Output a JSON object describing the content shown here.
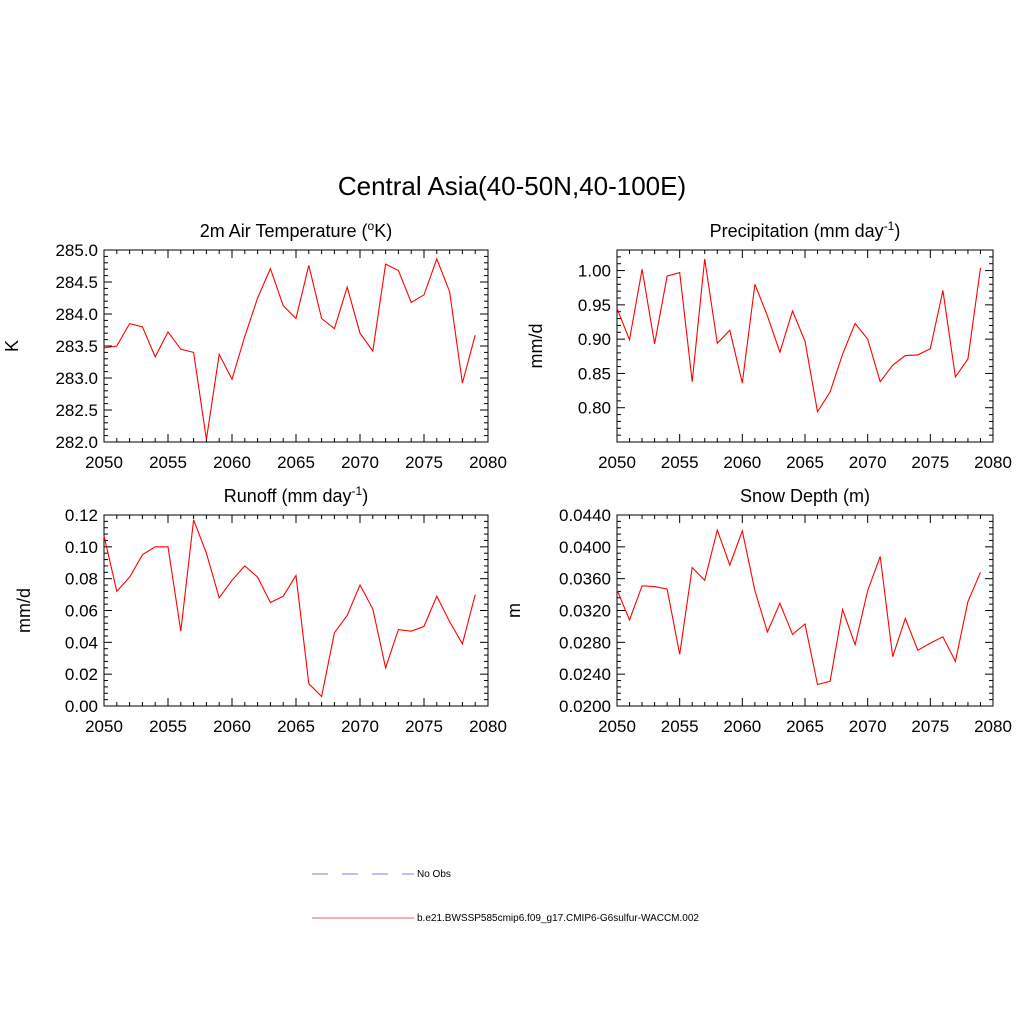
{
  "figure": {
    "title": "Central Asia(40-50N,40-100E)"
  },
  "legend": {
    "entries": [
      {
        "label": "No Obs",
        "style": "dashed",
        "color": "#9a9ae0"
      },
      {
        "label": "b.e21.BWSSP585cmip6.f09_g17.CMIP6-G6sulfur-WACCM.002",
        "style": "solid",
        "color": "#f08080"
      }
    ]
  },
  "chart_data": [
    {
      "type": "line",
      "title": "2m Air Temperature (",
      "title_sup": "o",
      "title_tail": "K)",
      "ylabel": "K",
      "xlim": [
        2050,
        2080
      ],
      "ylim": [
        282.0,
        285.0
      ],
      "xticks": [
        2050,
        2055,
        2060,
        2065,
        2070,
        2075,
        2080
      ],
      "xtick_labels": [
        "2050",
        "2055",
        "2060",
        "2065",
        "2070",
        "2075",
        "2080"
      ],
      "yticks": [
        282.0,
        282.5,
        283.0,
        283.5,
        284.0,
        284.5,
        285.0
      ],
      "ytick_labels": [
        "282.0",
        "282.5",
        "283.0",
        "283.5",
        "284.0",
        "284.5",
        "285.0"
      ],
      "series": [
        {
          "color": "#ff0000",
          "x": [
            2050,
            2051,
            2052,
            2053,
            2054,
            2055,
            2056,
            2057,
            2058,
            2059,
            2060,
            2061,
            2062,
            2063,
            2064,
            2065,
            2066,
            2067,
            2068,
            2069,
            2070,
            2071,
            2072,
            2073,
            2074,
            2075,
            2076,
            2077,
            2078,
            2079
          ],
          "y": [
            283.47,
            283.5,
            283.85,
            283.8,
            283.33,
            283.72,
            283.45,
            283.4,
            282.04,
            283.37,
            282.98,
            283.65,
            284.25,
            284.71,
            284.13,
            283.93,
            284.76,
            283.93,
            283.77,
            284.42,
            283.7,
            283.42,
            284.78,
            284.68,
            284.18,
            284.3,
            284.86,
            284.35,
            282.92,
            283.67
          ]
        }
      ]
    },
    {
      "type": "line",
      "title": "Precipitation (mm day",
      "title_sup": "-1",
      "title_tail": ")",
      "ylabel": "mm/d",
      "xlim": [
        2050,
        2080
      ],
      "ylim": [
        0.75,
        1.03
      ],
      "xticks": [
        2050,
        2055,
        2060,
        2065,
        2070,
        2075,
        2080
      ],
      "xtick_labels": [
        "2050",
        "2055",
        "2060",
        "2065",
        "2070",
        "2075",
        "2080"
      ],
      "yticks": [
        0.8,
        0.85,
        0.9,
        0.95,
        1.0
      ],
      "ytick_labels": [
        "0.80",
        "0.85",
        "0.90",
        "0.95",
        "1.00"
      ],
      "series": [
        {
          "color": "#ff0000",
          "x": [
            2050,
            2051,
            2052,
            2053,
            2054,
            2055,
            2056,
            2057,
            2058,
            2059,
            2060,
            2061,
            2062,
            2063,
            2064,
            2065,
            2066,
            2067,
            2068,
            2069,
            2070,
            2071,
            2072,
            2073,
            2074,
            2075,
            2076,
            2077,
            2078,
            2079
          ],
          "y": [
            0.945,
            0.899,
            1.002,
            0.893,
            0.992,
            0.997,
            0.838,
            1.017,
            0.894,
            0.913,
            0.836,
            0.98,
            0.934,
            0.881,
            0.941,
            0.897,
            0.794,
            0.823,
            0.878,
            0.923,
            0.9,
            0.838,
            0.862,
            0.876,
            0.877,
            0.886,
            0.971,
            0.845,
            0.871,
            1.004
          ]
        }
      ]
    },
    {
      "type": "line",
      "title": "Runoff (mm day",
      "title_sup": "-1",
      "title_tail": ")",
      "ylabel": "mm/d",
      "xlim": [
        2050,
        2080
      ],
      "ylim": [
        0.0,
        0.12
      ],
      "xticks": [
        2050,
        2055,
        2060,
        2065,
        2070,
        2075,
        2080
      ],
      "xtick_labels": [
        "2050",
        "2055",
        "2060",
        "2065",
        "2070",
        "2075",
        "2080"
      ],
      "yticks": [
        0.0,
        0.02,
        0.04,
        0.06,
        0.08,
        0.1,
        0.12
      ],
      "ytick_labels": [
        "0.00",
        "0.02",
        "0.04",
        "0.06",
        "0.08",
        "0.10",
        "0.12"
      ],
      "series": [
        {
          "color": "#ff0000",
          "x": [
            2050,
            2051,
            2052,
            2053,
            2054,
            2055,
            2056,
            2057,
            2058,
            2059,
            2060,
            2061,
            2062,
            2063,
            2064,
            2065,
            2066,
            2067,
            2068,
            2069,
            2070,
            2071,
            2072,
            2073,
            2074,
            2075,
            2076,
            2077,
            2078,
            2079
          ],
          "y": [
            0.107,
            0.072,
            0.081,
            0.095,
            0.1,
            0.1,
            0.047,
            0.117,
            0.096,
            0.068,
            0.079,
            0.088,
            0.081,
            0.065,
            0.069,
            0.082,
            0.014,
            0.006,
            0.046,
            0.057,
            0.076,
            0.061,
            0.024,
            0.048,
            0.047,
            0.05,
            0.069,
            0.053,
            0.039,
            0.07
          ]
        }
      ]
    },
    {
      "type": "line",
      "title": "Snow Depth (m)",
      "title_sup": "",
      "title_tail": "",
      "ylabel": "m",
      "xlim": [
        2050,
        2080
      ],
      "ylim": [
        0.02,
        0.044
      ],
      "xticks": [
        2050,
        2055,
        2060,
        2065,
        2070,
        2075,
        2080
      ],
      "xtick_labels": [
        "2050",
        "2055",
        "2060",
        "2065",
        "2070",
        "2075",
        "2080"
      ],
      "yticks": [
        0.02,
        0.024,
        0.028,
        0.032,
        0.036,
        0.04,
        0.044
      ],
      "ytick_labels": [
        "0.0200",
        "0.0240",
        "0.0280",
        "0.0320",
        "0.0360",
        "0.0400",
        "0.0440"
      ],
      "series": [
        {
          "color": "#ff0000",
          "x": [
            2050,
            2051,
            2052,
            2053,
            2054,
            2055,
            2056,
            2057,
            2058,
            2059,
            2060,
            2061,
            2062,
            2063,
            2064,
            2065,
            2066,
            2067,
            2068,
            2069,
            2070,
            2071,
            2072,
            2073,
            2074,
            2075,
            2076,
            2077,
            2078,
            2079
          ],
          "y": [
            0.0346,
            0.0308,
            0.0351,
            0.035,
            0.0347,
            0.0265,
            0.0374,
            0.0358,
            0.0421,
            0.0377,
            0.042,
            0.0345,
            0.0293,
            0.0329,
            0.029,
            0.0303,
            0.0227,
            0.0231,
            0.0321,
            0.0277,
            0.0345,
            0.0388,
            0.0262,
            0.031,
            0.027,
            0.0279,
            0.0287,
            0.0256,
            0.0331,
            0.0368
          ]
        }
      ]
    }
  ]
}
